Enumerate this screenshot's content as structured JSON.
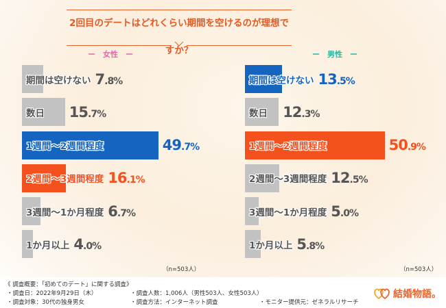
{
  "title": "2回目のデートはどれくらい期間を空けるのが理想ですか？",
  "colors": {
    "gray": "#c2c2c2",
    "blue": "#1565c0",
    "orange": "#f4511e",
    "title": "#e55a24",
    "female": "#e06aa8",
    "male": "#2bb5a0"
  },
  "chart_data": [
    {
      "type": "bar",
      "title": "女性",
      "categories": [
        "期間は空けない",
        "数日",
        "1週間〜2週間程度",
        "2週間〜3週間程度",
        "3週間〜1か月程度",
        "1か月以上"
      ],
      "values": [
        7.8,
        15.7,
        49.7,
        16.1,
        6.7,
        4.0
      ],
      "highlight": [
        "gray",
        "gray",
        "blue",
        "orange",
        "gray",
        "gray"
      ],
      "unit": "%",
      "note": "（n=503人）"
    },
    {
      "type": "bar",
      "title": "男性",
      "categories": [
        "期間は空けない",
        "数日",
        "1週間〜2週間程度",
        "2週間〜3週間程度",
        "3週間〜1か月程度",
        "1か月以上"
      ],
      "values": [
        13.5,
        12.3,
        50.9,
        12.5,
        5.0,
        5.8
      ],
      "highlight": [
        "blue",
        "gray",
        "orange",
        "gray",
        "gray",
        "gray"
      ],
      "unit": "%",
      "note": "（n=503人）"
    }
  ],
  "gender_labels": {
    "female": "ー　女性　ー",
    "male": "ー　男性　ー"
  },
  "footer": {
    "heading": "《 調査概要：「初めてのデート」に関する調査》",
    "date": "・調査日：2022年9月29日（木）",
    "target": "・調査対象：30代の独身男女",
    "count": "・調査人数：1,006人（男性503人、女性503人）",
    "method": "・調査方法：インターネット調査",
    "provider": "・モニター提供元：ゼネラルリサーチ",
    "logo": "結婚物語。"
  }
}
